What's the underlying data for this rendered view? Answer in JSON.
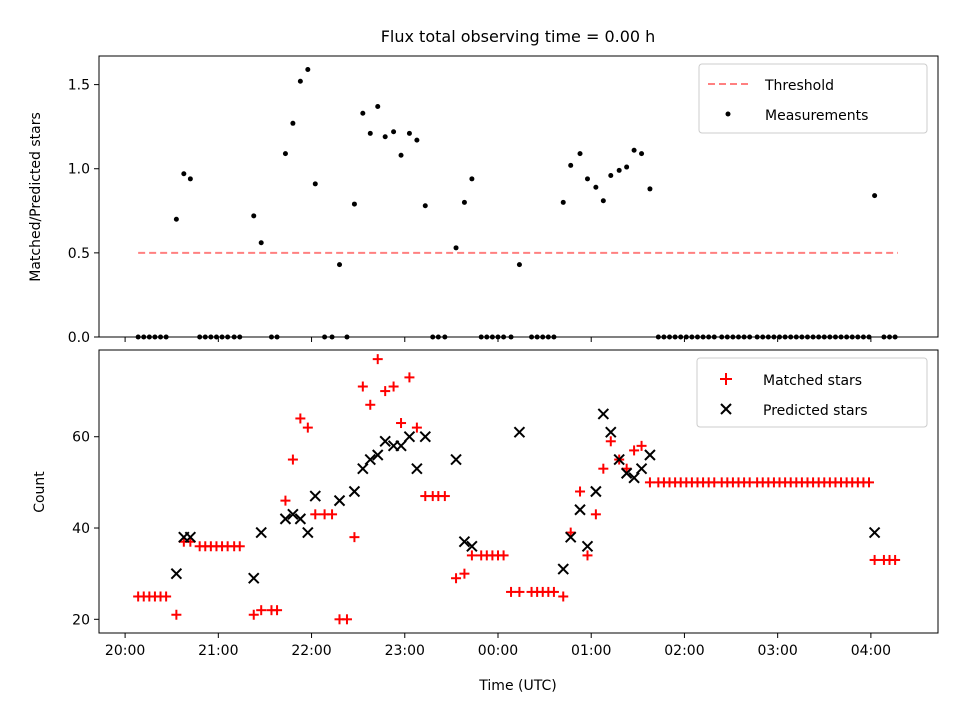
{
  "figure": {
    "title": "Flux total observing time = 0.00 h"
  },
  "chart_data": [
    {
      "type": "scatter",
      "name": "ratio-panel",
      "ylabel": "Matched/Predicted stars",
      "xlim": [
        -0.28,
        8.72
      ],
      "ylim": [
        0,
        1.67
      ],
      "xticks": [
        0,
        1,
        2,
        3,
        4,
        5,
        6,
        7,
        8
      ],
      "yticks": [
        0.0,
        0.5,
        1.0,
        1.5
      ],
      "ytick_labels": [
        "0.0",
        "0.5",
        "1.0",
        "1.5"
      ],
      "legend": {
        "placement": "top-right",
        "entries": [
          "Threshold",
          "Measurements"
        ]
      },
      "threshold": {
        "name": "Threshold",
        "y": 0.5,
        "x_range": [
          0.14,
          8.29
        ],
        "color": "#ff8080"
      },
      "series": [
        {
          "name": "Measurements",
          "color": "#000000",
          "points": [
            [
              0.14,
              0
            ],
            [
              0.2,
              0
            ],
            [
              0.26,
              0
            ],
            [
              0.32,
              0
            ],
            [
              0.38,
              0
            ],
            [
              0.44,
              0
            ],
            [
              0.55,
              0.7
            ],
            [
              0.63,
              0.97
            ],
            [
              0.7,
              0.94
            ],
            [
              0.8,
              0
            ],
            [
              0.86,
              0
            ],
            [
              0.92,
              0
            ],
            [
              0.98,
              0
            ],
            [
              1.04,
              0
            ],
            [
              1.1,
              0
            ],
            [
              1.17,
              0
            ],
            [
              1.23,
              0
            ],
            [
              1.38,
              0.72
            ],
            [
              1.46,
              0.56
            ],
            [
              1.57,
              0
            ],
            [
              1.63,
              0
            ],
            [
              1.72,
              1.09
            ],
            [
              1.8,
              1.27
            ],
            [
              1.88,
              1.52
            ],
            [
              1.96,
              1.59
            ],
            [
              2.04,
              0.91
            ],
            [
              2.14,
              0
            ],
            [
              2.22,
              0
            ],
            [
              2.3,
              0.43
            ],
            [
              2.38,
              0
            ],
            [
              2.46,
              0.79
            ],
            [
              2.55,
              1.33
            ],
            [
              2.63,
              1.21
            ],
            [
              2.71,
              1.37
            ],
            [
              2.79,
              1.19
            ],
            [
              2.88,
              1.22
            ],
            [
              2.96,
              1.08
            ],
            [
              3.05,
              1.21
            ],
            [
              3.13,
              1.17
            ],
            [
              3.22,
              0.78
            ],
            [
              3.3,
              0
            ],
            [
              3.36,
              0
            ],
            [
              3.43,
              0
            ],
            [
              3.55,
              0.53
            ],
            [
              3.64,
              0.8
            ],
            [
              3.72,
              0.94
            ],
            [
              3.82,
              0
            ],
            [
              3.88,
              0
            ],
            [
              3.94,
              0
            ],
            [
              4.0,
              0
            ],
            [
              4.06,
              0
            ],
            [
              4.14,
              0
            ],
            [
              4.23,
              0.43
            ],
            [
              4.36,
              0
            ],
            [
              4.42,
              0
            ],
            [
              4.48,
              0
            ],
            [
              4.54,
              0
            ],
            [
              4.6,
              0
            ],
            [
              4.7,
              0.8
            ],
            [
              4.78,
              1.02
            ],
            [
              4.88,
              1.09
            ],
            [
              4.96,
              0.94
            ],
            [
              5.05,
              0.89
            ],
            [
              5.13,
              0.81
            ],
            [
              5.21,
              0.96
            ],
            [
              5.3,
              0.99
            ],
            [
              5.38,
              1.01
            ],
            [
              5.46,
              1.11
            ],
            [
              5.54,
              1.09
            ],
            [
              5.63,
              0.88
            ],
            [
              5.72,
              0
            ],
            [
              5.78,
              0
            ],
            [
              5.84,
              0
            ],
            [
              5.9,
              0
            ],
            [
              5.96,
              0
            ],
            [
              6.02,
              0
            ],
            [
              6.08,
              0
            ],
            [
              6.14,
              0
            ],
            [
              6.2,
              0
            ],
            [
              6.26,
              0
            ],
            [
              6.32,
              0
            ],
            [
              6.4,
              0
            ],
            [
              6.46,
              0
            ],
            [
              6.52,
              0
            ],
            [
              6.58,
              0
            ],
            [
              6.64,
              0
            ],
            [
              6.7,
              0
            ],
            [
              6.78,
              0
            ],
            [
              6.84,
              0
            ],
            [
              6.9,
              0
            ],
            [
              6.96,
              0
            ],
            [
              7.02,
              0
            ],
            [
              7.08,
              0
            ],
            [
              7.14,
              0
            ],
            [
              7.2,
              0
            ],
            [
              7.26,
              0
            ],
            [
              7.32,
              0
            ],
            [
              7.38,
              0
            ],
            [
              7.44,
              0
            ],
            [
              7.5,
              0
            ],
            [
              7.56,
              0
            ],
            [
              7.62,
              0
            ],
            [
              7.68,
              0
            ],
            [
              7.74,
              0
            ],
            [
              7.8,
              0
            ],
            [
              7.86,
              0
            ],
            [
              7.92,
              0
            ],
            [
              7.98,
              0
            ],
            [
              8.04,
              0.84
            ],
            [
              8.14,
              0
            ],
            [
              8.2,
              0
            ],
            [
              8.26,
              0
            ]
          ]
        }
      ]
    },
    {
      "type": "scatter",
      "name": "count-panel",
      "xlabel": "Time (UTC)",
      "ylabel": "Count",
      "xlim": [
        -0.28,
        8.72
      ],
      "ylim": [
        17,
        79
      ],
      "xticks": [
        0,
        1,
        2,
        3,
        4,
        5,
        6,
        7,
        8
      ],
      "xtick_labels": [
        "20:00",
        "21:00",
        "22:00",
        "23:00",
        "00:00",
        "01:00",
        "02:00",
        "03:00",
        "04:00"
      ],
      "yticks": [
        20,
        40,
        60
      ],
      "ytick_labels": [
        "20",
        "40",
        "60"
      ],
      "legend": {
        "placement": "top-right",
        "entries": [
          "Matched stars",
          "Predicted stars"
        ]
      },
      "series": [
        {
          "name": "Matched stars",
          "color": "#ff0000",
          "marker": "plus",
          "points": [
            [
              0.14,
              25
            ],
            [
              0.2,
              25
            ],
            [
              0.26,
              25
            ],
            [
              0.32,
              25
            ],
            [
              0.38,
              25
            ],
            [
              0.44,
              25
            ],
            [
              0.55,
              21
            ],
            [
              0.63,
              37
            ],
            [
              0.7,
              37
            ],
            [
              0.8,
              36
            ],
            [
              0.86,
              36
            ],
            [
              0.92,
              36
            ],
            [
              0.98,
              36
            ],
            [
              1.04,
              36
            ],
            [
              1.1,
              36
            ],
            [
              1.17,
              36
            ],
            [
              1.23,
              36
            ],
            [
              1.38,
              21
            ],
            [
              1.46,
              22
            ],
            [
              1.57,
              22
            ],
            [
              1.63,
              22
            ],
            [
              1.72,
              46
            ],
            [
              1.8,
              55
            ],
            [
              1.88,
              64
            ],
            [
              1.96,
              62
            ],
            [
              2.04,
              43
            ],
            [
              2.14,
              43
            ],
            [
              2.22,
              43
            ],
            [
              2.3,
              20
            ],
            [
              2.38,
              20
            ],
            [
              2.46,
              38
            ],
            [
              2.55,
              71
            ],
            [
              2.63,
              67
            ],
            [
              2.71,
              77
            ],
            [
              2.79,
              70
            ],
            [
              2.88,
              71
            ],
            [
              2.96,
              63
            ],
            [
              3.05,
              73
            ],
            [
              3.13,
              62
            ],
            [
              3.22,
              47
            ],
            [
              3.3,
              47
            ],
            [
              3.36,
              47
            ],
            [
              3.43,
              47
            ],
            [
              3.55,
              29
            ],
            [
              3.64,
              30
            ],
            [
              3.72,
              34
            ],
            [
              3.82,
              34
            ],
            [
              3.88,
              34
            ],
            [
              3.94,
              34
            ],
            [
              4.0,
              34
            ],
            [
              4.06,
              34
            ],
            [
              4.14,
              26
            ],
            [
              4.23,
              26
            ],
            [
              4.36,
              26
            ],
            [
              4.42,
              26
            ],
            [
              4.48,
              26
            ],
            [
              4.54,
              26
            ],
            [
              4.6,
              26
            ],
            [
              4.7,
              25
            ],
            [
              4.78,
              39
            ],
            [
              4.88,
              48
            ],
            [
              4.96,
              34
            ],
            [
              5.05,
              43
            ],
            [
              5.13,
              53
            ],
            [
              5.21,
              59
            ],
            [
              5.3,
              55
            ],
            [
              5.38,
              53
            ],
            [
              5.46,
              57
            ],
            [
              5.54,
              58
            ],
            [
              5.63,
              50
            ],
            [
              5.72,
              50
            ],
            [
              5.78,
              50
            ],
            [
              5.84,
              50
            ],
            [
              5.9,
              50
            ],
            [
              5.96,
              50
            ],
            [
              6.02,
              50
            ],
            [
              6.08,
              50
            ],
            [
              6.14,
              50
            ],
            [
              6.2,
              50
            ],
            [
              6.26,
              50
            ],
            [
              6.32,
              50
            ],
            [
              6.4,
              50
            ],
            [
              6.46,
              50
            ],
            [
              6.52,
              50
            ],
            [
              6.58,
              50
            ],
            [
              6.64,
              50
            ],
            [
              6.7,
              50
            ],
            [
              6.78,
              50
            ],
            [
              6.84,
              50
            ],
            [
              6.9,
              50
            ],
            [
              6.96,
              50
            ],
            [
              7.02,
              50
            ],
            [
              7.08,
              50
            ],
            [
              7.14,
              50
            ],
            [
              7.2,
              50
            ],
            [
              7.26,
              50
            ],
            [
              7.32,
              50
            ],
            [
              7.38,
              50
            ],
            [
              7.44,
              50
            ],
            [
              7.5,
              50
            ],
            [
              7.56,
              50
            ],
            [
              7.62,
              50
            ],
            [
              7.68,
              50
            ],
            [
              7.74,
              50
            ],
            [
              7.8,
              50
            ],
            [
              7.86,
              50
            ],
            [
              7.92,
              50
            ],
            [
              7.98,
              50
            ],
            [
              8.04,
              33
            ],
            [
              8.14,
              33
            ],
            [
              8.2,
              33
            ],
            [
              8.26,
              33
            ]
          ]
        },
        {
          "name": "Predicted stars",
          "color": "#000000",
          "marker": "x",
          "points": [
            [
              0.55,
              30
            ],
            [
              0.63,
              38
            ],
            [
              0.7,
              38
            ],
            [
              1.38,
              29
            ],
            [
              1.46,
              39
            ],
            [
              1.72,
              42
            ],
            [
              1.8,
              43
            ],
            [
              1.88,
              42
            ],
            [
              1.96,
              39
            ],
            [
              2.04,
              47
            ],
            [
              2.3,
              46
            ],
            [
              2.46,
              48
            ],
            [
              2.55,
              53
            ],
            [
              2.63,
              55
            ],
            [
              2.71,
              56
            ],
            [
              2.79,
              59
            ],
            [
              2.88,
              58
            ],
            [
              2.96,
              58
            ],
            [
              3.05,
              60
            ],
            [
              3.13,
              53
            ],
            [
              3.22,
              60
            ],
            [
              3.55,
              55
            ],
            [
              3.64,
              37
            ],
            [
              3.72,
              36
            ],
            [
              4.23,
              61
            ],
            [
              4.7,
              31
            ],
            [
              4.78,
              38
            ],
            [
              4.88,
              44
            ],
            [
              4.96,
              36
            ],
            [
              5.05,
              48
            ],
            [
              5.13,
              65
            ],
            [
              5.21,
              61
            ],
            [
              5.3,
              55
            ],
            [
              5.38,
              52
            ],
            [
              5.46,
              51
            ],
            [
              5.54,
              53
            ],
            [
              5.63,
              56
            ],
            [
              8.04,
              39
            ]
          ]
        }
      ]
    }
  ]
}
